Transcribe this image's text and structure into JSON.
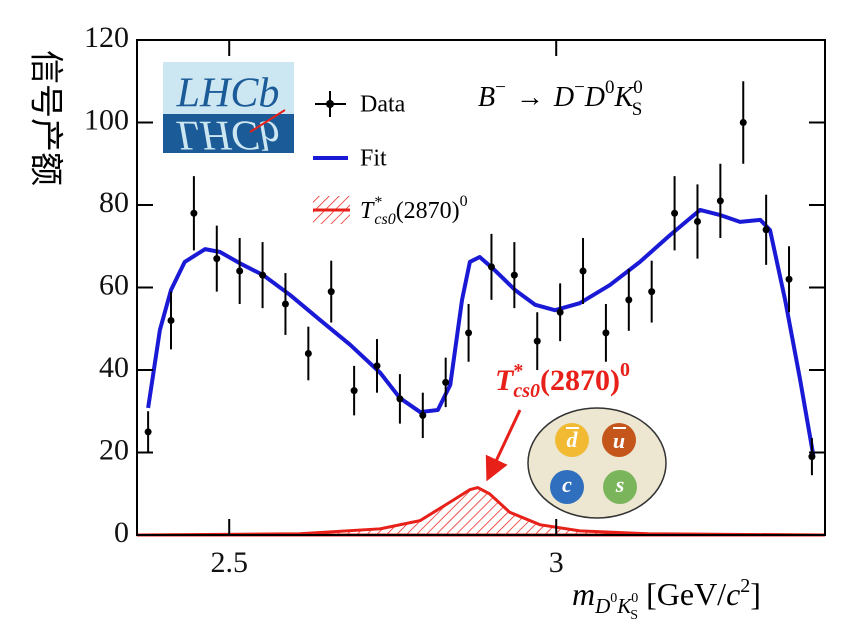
{
  "chart_data": {
    "type": "errorbar",
    "y_label": "信号产额",
    "x_label": [
      "m",
      "D",
      "0",
      "K",
      "0",
      "S",
      "[GeV/",
      "c",
      "2",
      "]"
    ],
    "annotation": [
      "B",
      "−",
      "→",
      "D",
      "−",
      "D",
      "0",
      "K",
      "0",
      "S"
    ],
    "signal_label": [
      "T",
      "*",
      "cs0",
      "(2870)",
      "0"
    ],
    "logo": "LHCb",
    "quarks": [
      "d",
      "u",
      "c",
      "s"
    ],
    "xlim": [
      2.359,
      3.411
    ],
    "ylim": [
      0,
      120
    ],
    "xticks": [
      2.5,
      3
    ],
    "yticks": [
      0,
      20,
      40,
      60,
      80,
      100,
      120
    ],
    "series": [
      {
        "name": "Data",
        "color": "#000000",
        "kind": "errorbar",
        "x": [
          2.376,
          2.411,
          2.446,
          2.481,
          2.516,
          2.551,
          2.586,
          2.621,
          2.656,
          2.691,
          2.726,
          2.761,
          2.796,
          2.831,
          2.866,
          2.901,
          2.936,
          2.971,
          3.006,
          3.041,
          3.076,
          3.111,
          3.146,
          3.181,
          3.216,
          3.251,
          3.286,
          3.321,
          3.356,
          3.391
        ],
        "values": [
          25,
          52,
          78,
          67,
          64,
          63,
          56,
          44,
          59,
          35,
          41,
          33,
          29,
          37,
          49,
          65,
          63,
          47,
          54,
          64,
          49,
          57,
          59,
          78,
          76,
          81,
          100,
          74,
          62,
          19
        ],
        "errors": [
          5,
          7,
          9,
          8,
          8,
          8,
          7.5,
          6.5,
          7.5,
          6,
          6.5,
          6,
          5.5,
          6,
          7,
          8,
          8,
          7,
          7,
          8,
          7,
          7.5,
          7.5,
          9,
          9,
          9,
          10,
          8.5,
          8,
          4.5
        ]
      },
      {
        "name": "Fit",
        "color": "#1a1ad6",
        "kind": "line",
        "x": [
          2.376,
          2.394,
          2.411,
          2.432,
          2.463,
          2.486,
          2.516,
          2.552,
          2.593,
          2.639,
          2.685,
          2.731,
          2.761,
          2.792,
          2.819,
          2.838,
          2.856,
          2.868,
          2.883,
          2.906,
          2.937,
          2.968,
          2.998,
          3.036,
          3.082,
          3.128,
          3.174,
          3.22,
          3.25,
          3.281,
          3.312,
          3.327,
          3.35,
          3.373,
          3.393
        ],
        "values": [
          30.8,
          49.7,
          59.4,
          66.2,
          69.3,
          68.6,
          65.9,
          63,
          58.2,
          52.1,
          46.1,
          39.3,
          33.2,
          29.8,
          30.3,
          36.4,
          57,
          66.2,
          67.4,
          64.2,
          59.4,
          55.8,
          54.5,
          56.2,
          60.6,
          66.2,
          72.7,
          78.8,
          77.6,
          75.9,
          76.4,
          73.9,
          57,
          37.6,
          19.4
        ]
      },
      {
        "name": [
          "T",
          "*",
          "cs0",
          "(2870)",
          "0"
        ],
        "color": "#e8201a",
        "kind": "area",
        "x": [
          2.359,
          2.608,
          2.731,
          2.792,
          2.838,
          2.868,
          2.88,
          2.898,
          2.929,
          2.975,
          3.036,
          3.141,
          3.411
        ],
        "values": [
          0,
          0.3,
          1.5,
          3.5,
          8,
          11,
          11.5,
          10,
          5.5,
          2.5,
          1,
          0.3,
          0
        ]
      }
    ]
  }
}
